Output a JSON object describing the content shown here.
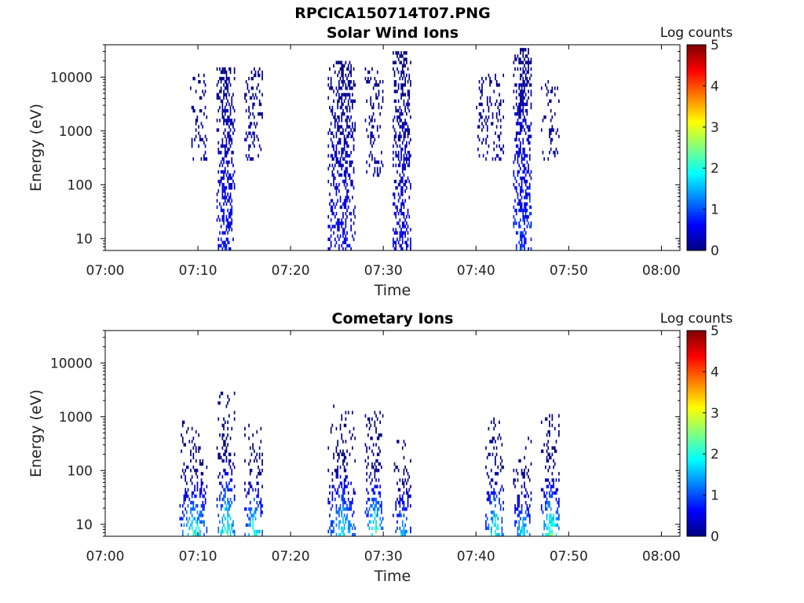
{
  "figure_title": "RPCICA150714T07.PNG",
  "chart_data": [
    {
      "type": "heatmap",
      "title": "Solar Wind Ions",
      "xlabel": "Time",
      "ylabel": "Energy (eV)",
      "x_range": [
        "07:00",
        "08:02"
      ],
      "y_range": [
        6,
        40000
      ],
      "y_scale": "log",
      "x_ticks": [
        "07:00",
        "07:10",
        "07:20",
        "07:30",
        "07:40",
        "07:50",
        "08:00"
      ],
      "y_ticks": [
        "10",
        "100",
        "1000",
        "10000"
      ],
      "colorbar": {
        "label": "Log counts",
        "range": [
          0,
          5
        ],
        "ticks": [
          "0",
          "1",
          "2",
          "3",
          "4",
          "5"
        ],
        "colormap": "jet"
      },
      "bursts": [
        {
          "t0": "07:09",
          "t1": "07:11",
          "e_min": 300,
          "e_max": 12000,
          "peak_log_counts": 0.3,
          "density": 0.25
        },
        {
          "t0": "07:12",
          "t1": "07:14",
          "e_min": 6,
          "e_max": 16000,
          "peak_log_counts": 1.0,
          "density": 0.55
        },
        {
          "t0": "07:15",
          "t1": "07:17",
          "e_min": 300,
          "e_max": 16000,
          "peak_log_counts": 0.3,
          "density": 0.3
        },
        {
          "t0": "07:24",
          "t1": "07:27",
          "e_min": 6,
          "e_max": 21000,
          "peak_log_counts": 0.8,
          "density": 0.5
        },
        {
          "t0": "07:28",
          "t1": "07:30",
          "e_min": 150,
          "e_max": 15000,
          "peak_log_counts": 0.3,
          "density": 0.25
        },
        {
          "t0": "07:31",
          "t1": "07:33",
          "e_min": 6,
          "e_max": 30000,
          "peak_log_counts": 0.8,
          "density": 0.55
        },
        {
          "t0": "07:40",
          "t1": "07:43",
          "e_min": 300,
          "e_max": 12000,
          "peak_log_counts": 0.3,
          "density": 0.25
        },
        {
          "t0": "07:44",
          "t1": "07:46",
          "e_min": 6,
          "e_max": 33000,
          "peak_log_counts": 1.3,
          "density": 0.55
        },
        {
          "t0": "07:47",
          "t1": "07:49",
          "e_min": 300,
          "e_max": 10000,
          "peak_log_counts": 0.3,
          "density": 0.25
        }
      ]
    },
    {
      "type": "heatmap",
      "title": "Cometary Ions",
      "xlabel": "Time",
      "ylabel": "Energy (eV)",
      "x_range": [
        "07:00",
        "08:02"
      ],
      "y_range": [
        6,
        40000
      ],
      "y_scale": "log",
      "x_ticks": [
        "07:00",
        "07:10",
        "07:20",
        "07:30",
        "07:40",
        "07:50",
        "08:00"
      ],
      "y_ticks": [
        "10",
        "100",
        "1000",
        "10000"
      ],
      "colorbar": {
        "label": "Log counts",
        "range": [
          0,
          5
        ],
        "ticks": [
          "0",
          "1",
          "2",
          "3",
          "4",
          "5"
        ],
        "colormap": "jet"
      },
      "bursts": [
        {
          "t0": "07:08",
          "t1": "07:11",
          "e_min": 6,
          "e_max": 800,
          "peak_log_counts": 2.6,
          "density": 0.45
        },
        {
          "t0": "07:12",
          "t1": "07:14",
          "e_min": 6,
          "e_max": 2800,
          "peak_log_counts": 2.8,
          "density": 0.5
        },
        {
          "t0": "07:15",
          "t1": "07:17",
          "e_min": 6,
          "e_max": 800,
          "peak_log_counts": 2.6,
          "density": 0.45
        },
        {
          "t0": "07:24",
          "t1": "07:27",
          "e_min": 6,
          "e_max": 1700,
          "peak_log_counts": 2.3,
          "density": 0.45
        },
        {
          "t0": "07:28",
          "t1": "07:30",
          "e_min": 6,
          "e_max": 1200,
          "peak_log_counts": 2.8,
          "density": 0.5
        },
        {
          "t0": "07:31",
          "t1": "07:33",
          "e_min": 6,
          "e_max": 350,
          "peak_log_counts": 2.0,
          "density": 0.45
        },
        {
          "t0": "07:41",
          "t1": "07:43",
          "e_min": 6,
          "e_max": 1000,
          "peak_log_counts": 2.6,
          "density": 0.5
        },
        {
          "t0": "07:44",
          "t1": "07:46",
          "e_min": 6,
          "e_max": 400,
          "peak_log_counts": 2.2,
          "density": 0.45
        },
        {
          "t0": "07:47",
          "t1": "07:49",
          "e_min": 6,
          "e_max": 1100,
          "peak_log_counts": 3.0,
          "density": 0.5
        }
      ]
    }
  ]
}
